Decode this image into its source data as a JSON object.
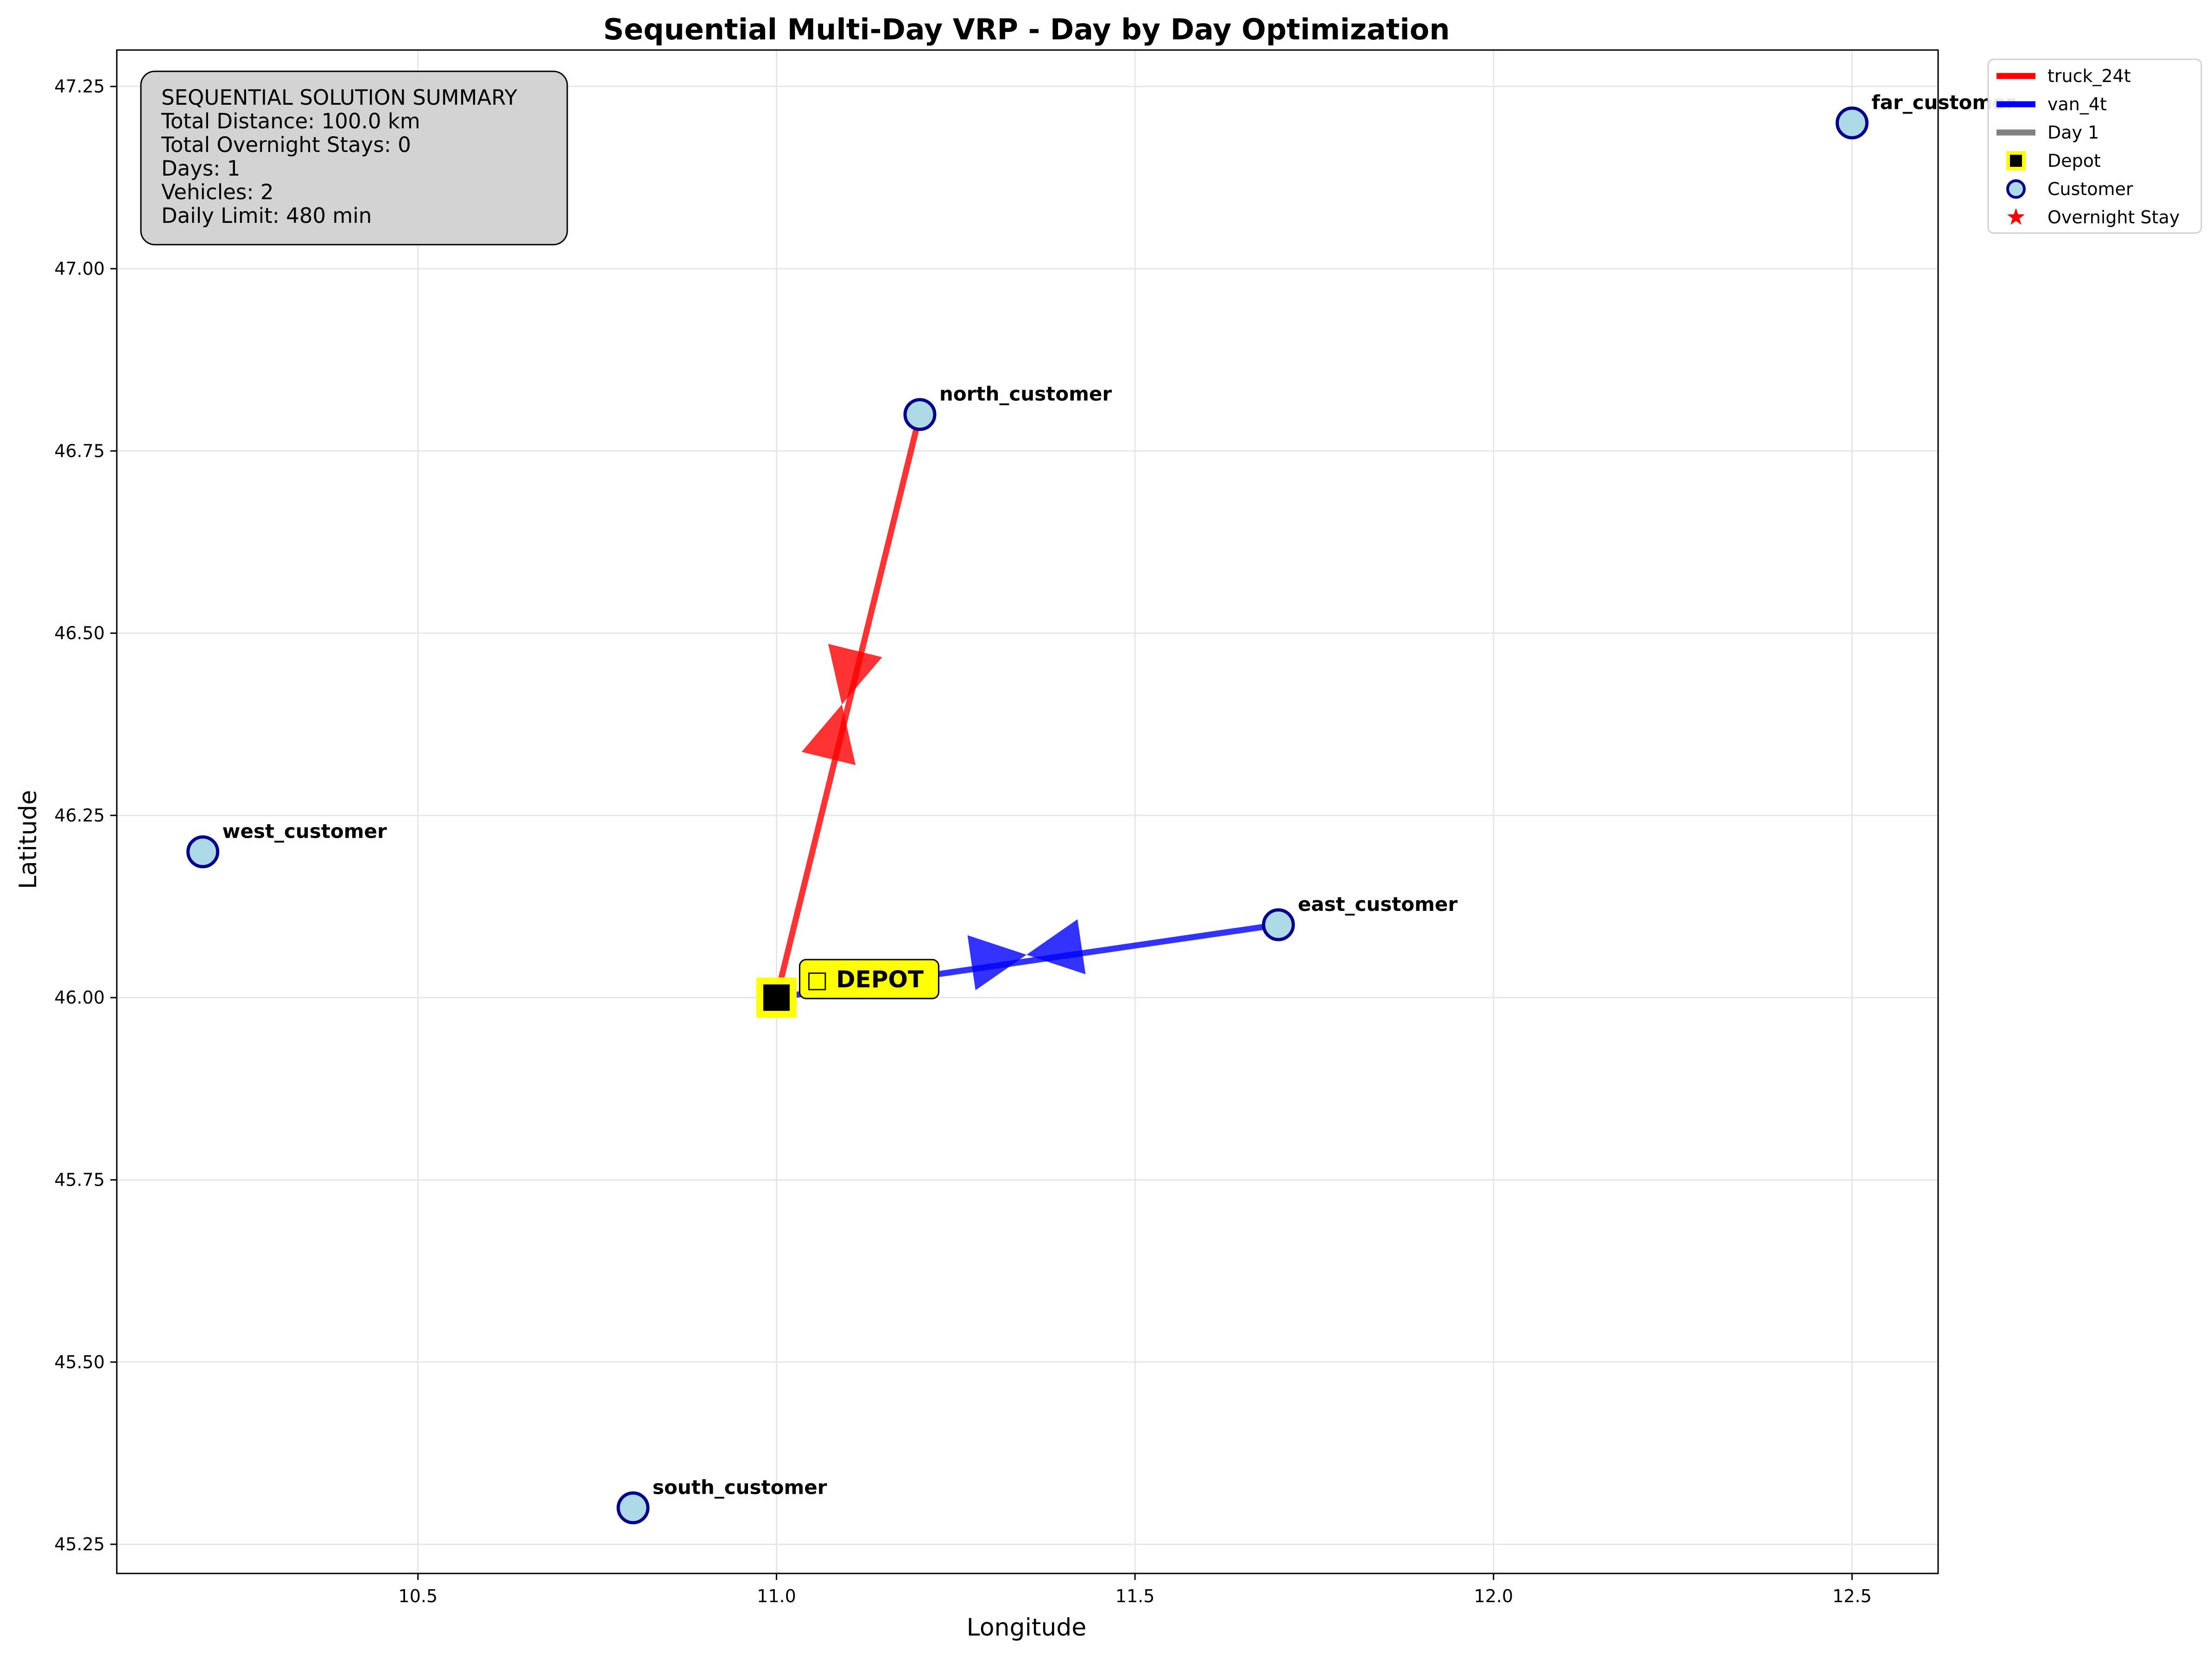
{
  "chart_data": {
    "type": "scatter",
    "title": "Sequential Multi-Day VRP - Day by Day Optimization",
    "xlabel": "Longitude",
    "ylabel": "Latitude",
    "xlim": [
      10.08,
      12.62
    ],
    "ylim": [
      45.21,
      47.3
    ],
    "xticks": [
      10.5,
      11.0,
      11.5,
      12.0,
      12.5
    ],
    "yticks": [
      45.25,
      45.5,
      45.75,
      46.0,
      46.25,
      46.5,
      46.75,
      47.0,
      47.25
    ],
    "xtick_labels": [
      "10.5",
      "11.0",
      "11.5",
      "12.0",
      "12.5"
    ],
    "ytick_labels": [
      "45.25",
      "45.50",
      "45.75",
      "46.00",
      "46.25",
      "46.50",
      "46.75",
      "47.00",
      "47.25"
    ],
    "grid": true,
    "depot": {
      "label": "□ DEPOT",
      "x": 11.0,
      "y": 46.0
    },
    "customers": [
      {
        "name": "north_customer",
        "x": 11.2,
        "y": 46.8
      },
      {
        "name": "west_customer",
        "x": 10.2,
        "y": 46.2
      },
      {
        "name": "east_customer",
        "x": 11.7,
        "y": 46.1
      },
      {
        "name": "south_customer",
        "x": 10.8,
        "y": 45.3
      },
      {
        "name": "far_customer",
        "x": 12.5,
        "y": 47.2
      }
    ],
    "routes": [
      {
        "name": "truck_24t",
        "color": "#ff0000",
        "path": [
          [
            11.0,
            46.0
          ],
          [
            11.2,
            46.8
          ],
          [
            11.0,
            46.0
          ]
        ]
      },
      {
        "name": "van_4t",
        "color": "#0000ff",
        "path": [
          [
            11.0,
            46.0
          ],
          [
            11.7,
            46.1
          ],
          [
            11.0,
            46.0
          ]
        ]
      }
    ],
    "summary_box": {
      "lines": [
        "SEQUENTIAL SOLUTION SUMMARY",
        "Total Distance: 100.0 km",
        "Total Overnight Stays: 0",
        "Days: 1",
        "Vehicles: 2",
        "Daily Limit: 480 min"
      ]
    },
    "legend": {
      "placement": "outside-top-right",
      "entries": [
        {
          "label": "truck_24t",
          "kind": "line",
          "color": "#ff0000"
        },
        {
          "label": "van_4t",
          "kind": "line",
          "color": "#0000ff"
        },
        {
          "label": "Day 1",
          "kind": "line",
          "color": "#808080"
        },
        {
          "label": "Depot",
          "kind": "depot",
          "color": "#000000"
        },
        {
          "label": "Customer",
          "kind": "customer",
          "color": "#add8e6"
        },
        {
          "label": "Overnight Stay",
          "kind": "star",
          "color": "#ff0000"
        }
      ]
    },
    "colors": {
      "customer_fill": "#add8e6",
      "customer_edge": "#00008b",
      "depot_fill": "#000000",
      "depot_edge": "#ffff00",
      "summary_bg": "#d3d3d3",
      "grid": "#e6e6e6"
    }
  }
}
